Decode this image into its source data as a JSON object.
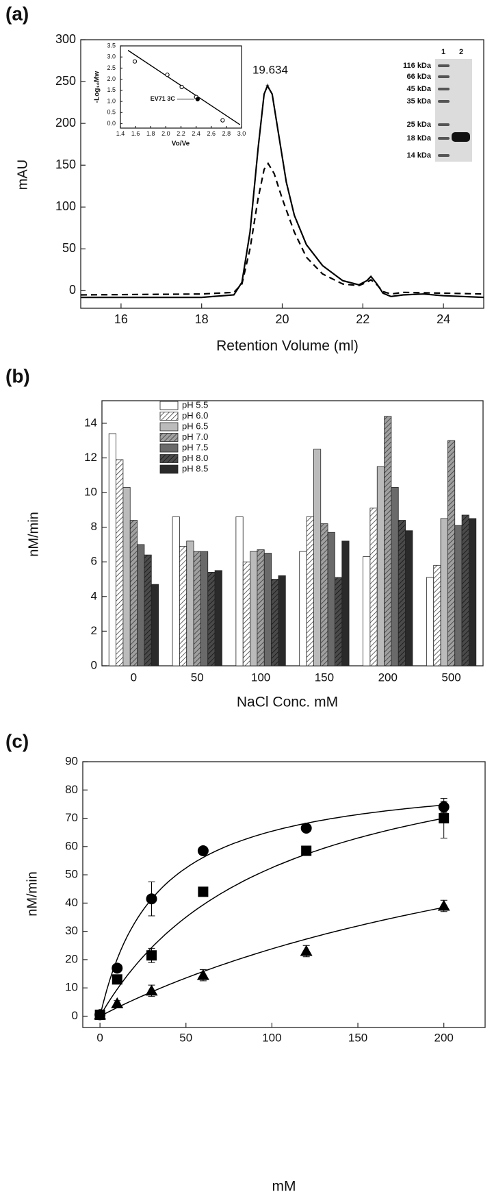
{
  "chart_data": [
    {
      "type": "line",
      "panel_label": "(a)",
      "xlabel": "Retention Volume (ml)",
      "ylabel": "mAU",
      "xlim": [
        15,
        25
      ],
      "ylim": [
        -21,
        300
      ],
      "xticks": [
        16,
        18,
        20,
        22,
        24
      ],
      "yticks": [
        0,
        50,
        100,
        150,
        200,
        250,
        300
      ],
      "series": [
        {
          "color": "#000000",
          "dash": false,
          "x": [
            15,
            18,
            18.8,
            19.0,
            19.2,
            19.4,
            19.55,
            19.634,
            19.75,
            19.9,
            20.1,
            20.3,
            20.6,
            21,
            21.5,
            21.9,
            22.1,
            22.2,
            22.35,
            22.5,
            22.7,
            23,
            23.5,
            24,
            25
          ],
          "values": [
            -8,
            -8,
            -5,
            10,
            70,
            170,
            235,
            245,
            235,
            190,
            130,
            90,
            55,
            30,
            12,
            7,
            12,
            17,
            8,
            -3,
            -7,
            -5,
            -4,
            -6,
            -8
          ]
        },
        {
          "color": "#000000",
          "dash": true,
          "x": [
            15,
            18,
            18.8,
            19.0,
            19.2,
            19.4,
            19.55,
            19.65,
            19.8,
            20,
            20.3,
            20.6,
            21,
            21.5,
            21.9,
            22.1,
            22.2,
            22.35,
            22.5,
            22.7,
            23,
            24,
            25
          ],
          "values": [
            -5,
            -4,
            -2,
            8,
            50,
            110,
            145,
            152,
            140,
            110,
            70,
            40,
            20,
            8,
            6,
            10,
            13,
            7,
            -1,
            -4,
            -2,
            -3,
            -4
          ]
        }
      ],
      "annotation": {
        "label": "19.634",
        "x": 19.634,
        "y": 245
      },
      "inset": {
        "type": "scatter",
        "xlabel": "Vo/Ve",
        "ylabel": "-Log₁₀Mw",
        "xlim": [
          1.4,
          3.0
        ],
        "ylim": [
          -0.2,
          3.5
        ],
        "xticks": [
          1.4,
          1.6,
          1.8,
          {
            "value": 2,
            "label": "2.0"
          },
          2.2,
          2.4,
          2.6,
          2.8,
          {
            "value": 3,
            "label": "3.0"
          }
        ],
        "yticks": [
          {
            "value": 0,
            "label": "0.0"
          },
          0.5,
          {
            "value": 1,
            "label": "1.0"
          },
          1.5,
          {
            "value": 2,
            "label": "2.0"
          },
          2.5,
          {
            "value": 3,
            "label": "3.0"
          },
          3.5
        ],
        "x": [
          1.59,
          2.02,
          2.21,
          2.4,
          2.42,
          2.75
        ],
        "values": [
          2.8,
          2.2,
          1.65,
          1.2,
          1.1,
          0.15
        ],
        "filled": [
          false,
          false,
          false,
          false,
          true,
          false
        ],
        "fit_x": [
          1.5,
          2.98
        ],
        "fit_values": [
          3.3,
          -0.05
        ],
        "annotation": "EV71 3C"
      },
      "gel": {
        "lanes": [
          "1",
          "2"
        ],
        "markers": [
          "116 kDa",
          "66 kDa",
          "45 kDa",
          "35 kDa",
          "25 kDa",
          "18 kDa",
          "14 kDa"
        ]
      }
    },
    {
      "type": "bar",
      "panel_label": "(b)",
      "xlabel": "NaCl Conc. mM",
      "ylabel": "nM/min",
      "categories": [
        "0",
        "50",
        "100",
        "150",
        "200",
        "500"
      ],
      "ylim": [
        0,
        15.3
      ],
      "yticks": [
        0,
        2,
        4,
        6,
        8,
        10,
        12,
        14
      ],
      "series": [
        {
          "name": "pH 5.5",
          "color": "#ffffff",
          "hatch": false,
          "values": [
            13.4,
            8.6,
            8.6,
            6.6,
            6.3,
            5.1
          ]
        },
        {
          "name": "pH 6.0",
          "color": "#ffffff",
          "hatch": true,
          "values": [
            11.9,
            6.9,
            6.0,
            8.6,
            9.1,
            5.8
          ]
        },
        {
          "name": "pH 6.5",
          "color": "#bbbbbb",
          "hatch": false,
          "values": [
            10.3,
            7.2,
            6.6,
            12.5,
            11.5,
            8.5
          ]
        },
        {
          "name": "pH 7.0",
          "color": "#a0a0a0",
          "hatch": true,
          "values": [
            8.4,
            6.6,
            6.7,
            8.2,
            14.4,
            13.0
          ]
        },
        {
          "name": "pH 7.5",
          "color": "#6a6a6a",
          "hatch": false,
          "values": [
            7.0,
            6.6,
            6.5,
            7.7,
            10.3,
            8.1
          ]
        },
        {
          "name": "pH 8.0",
          "color": "#4a4a4a",
          "hatch": true,
          "values": [
            6.4,
            5.4,
            5.0,
            5.1,
            8.4,
            8.7
          ]
        },
        {
          "name": "pH 8.5",
          "color": "#2a2a2a",
          "hatch": false,
          "values": [
            4.7,
            5.5,
            5.2,
            7.2,
            7.8,
            8.5
          ]
        }
      ]
    },
    {
      "type": "scatter",
      "panel_label": "(c)",
      "xlabel": "mM",
      "ylabel": "nM/min",
      "xlim": [
        -10,
        224
      ],
      "ylim": [
        -4,
        90
      ],
      "xticks": [
        0,
        50,
        100,
        150,
        200
      ],
      "yticks": [
        0,
        10,
        20,
        30,
        40,
        50,
        60,
        70,
        80,
        90
      ],
      "x": [
        0,
        10,
        30,
        60,
        120,
        200
      ],
      "series": [
        {
          "marker": "circle",
          "color": "#000000",
          "values": [
            0.5,
            17,
            41.5,
            58.5,
            66.5,
            74
          ],
          "errors": [
            0,
            1,
            6,
            1,
            1,
            2
          ],
          "fit": {
            "vmax": 87,
            "km": 33
          }
        },
        {
          "marker": "square",
          "color": "#000000",
          "values": [
            0.5,
            13,
            21.5,
            44,
            58.5,
            70
          ],
          "errors": [
            0,
            1,
            2.5,
            1,
            1,
            7
          ],
          "fit": {
            "vmax": 105,
            "km": 100
          }
        },
        {
          "marker": "triangle",
          "color": "#000000",
          "values": [
            0.5,
            4.5,
            9,
            14.5,
            23,
            39
          ],
          "errors": [
            0,
            1,
            2,
            2,
            2,
            2
          ],
          "fit": {
            "vmax": 100,
            "km": 320
          }
        }
      ]
    }
  ]
}
